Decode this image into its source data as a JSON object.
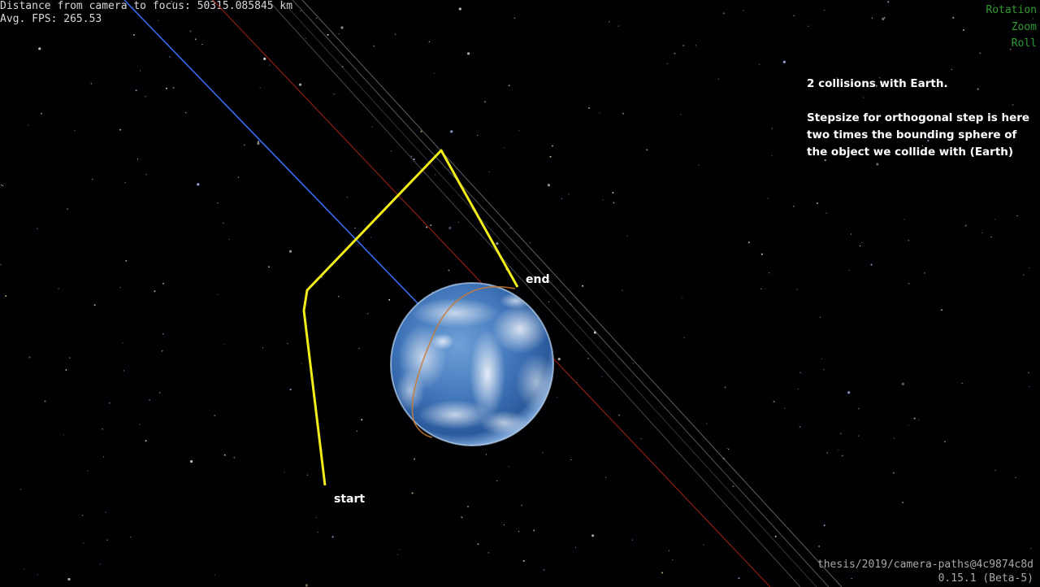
{
  "hud": {
    "distance_line": "Distance from camera to focus: 50315.085845 km",
    "fps_line": "Avg. FPS: 265.53"
  },
  "navigation_modes": [
    "Rotation",
    "Zoom",
    "Roll"
  ],
  "annotation": {
    "line1": "2 collisions with Earth.",
    "paragraph": "Stepsize for orthogonal step is here\ntwo times the bounding sphere of\nthe object we collide with (Earth)"
  },
  "path_labels": {
    "start": "start",
    "end": "end"
  },
  "version": {
    "commit": "thesis/2019/camera-paths@4c9874c8d",
    "release": "0.15.1 (Beta-5)"
  },
  "colors": {
    "camera_path": "#f2ec1a",
    "blue_trail": "#3a6cf0",
    "red_trail": "#8c1d12",
    "orange_orbit": "#c87a32",
    "nav_green": "#2f9a2f",
    "space_background": "#010103"
  }
}
